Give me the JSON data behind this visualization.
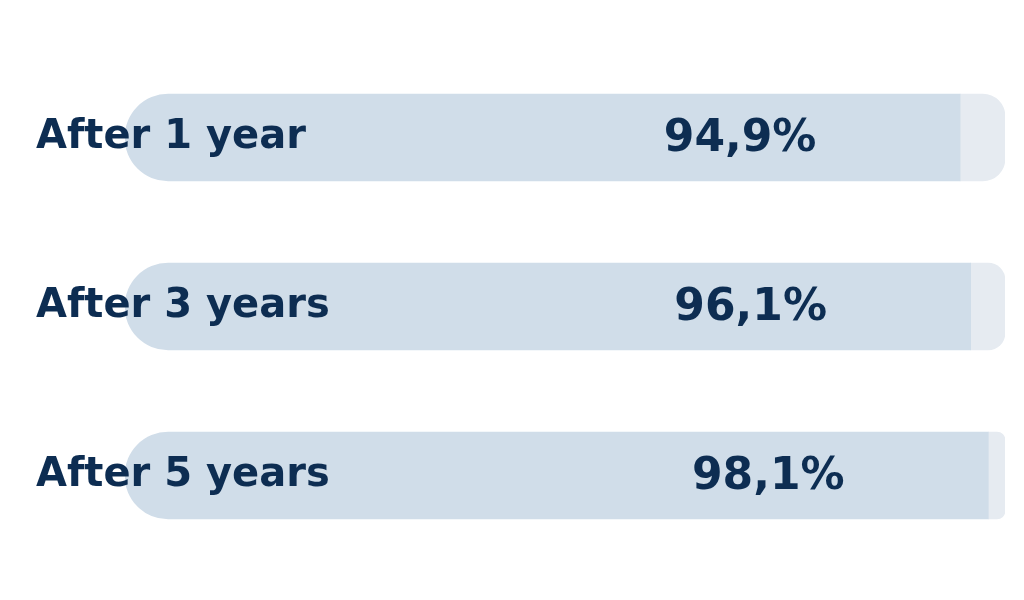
{
  "chart_data": {
    "type": "bar",
    "orientation": "horizontal",
    "categories": [
      "After 1 year",
      "After 3 years",
      "After 5 years"
    ],
    "series": [
      {
        "color": "#d0dde9",
        "values": [
          94.9,
          96.1,
          98.1
        ],
        "value_labels": [
          "94,9%",
          "96,1%",
          "98,1%"
        ]
      },
      {
        "color": "#e6ebf1",
        "values": [
          5.1,
          3.9,
          1.9
        ]
      }
    ],
    "stacked": true,
    "xlim": [
      0,
      100
    ],
    "tick_labels": "y"
  }
}
